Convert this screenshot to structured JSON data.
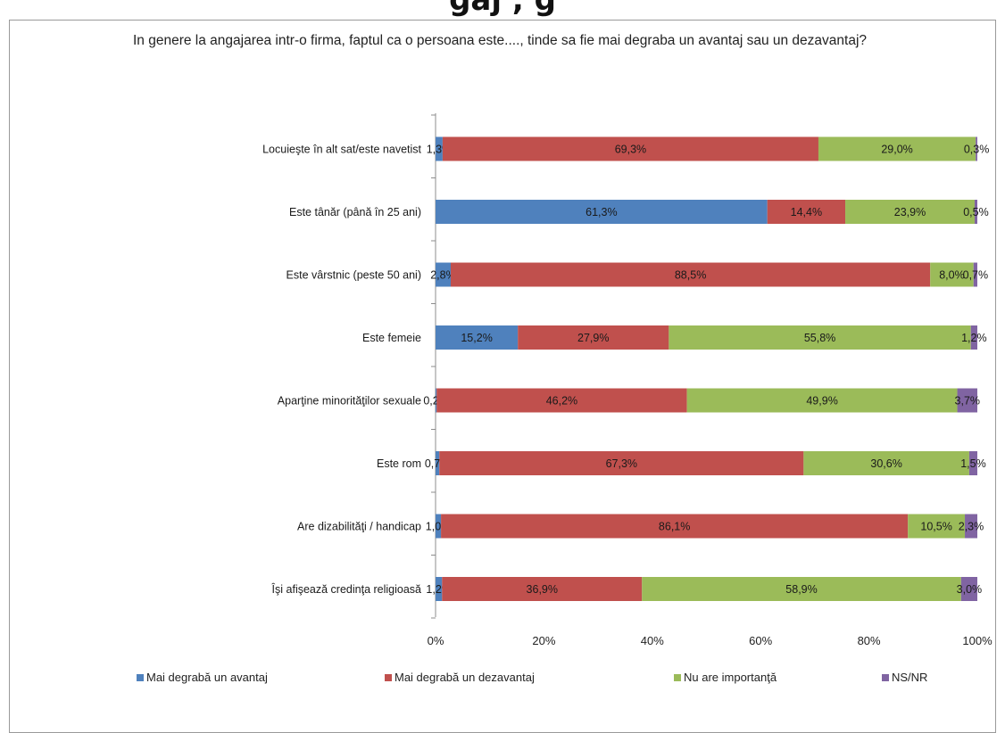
{
  "header_fragment": "gaj , g",
  "chart_data": {
    "type": "bar",
    "orientation": "horizontal",
    "stacked": "percent",
    "title": "In genere la angajarea intr-o firma, faptul ca o persoana este...., tinde sa fie mai degraba un avantaj sau un dezavantaj?",
    "categories": [
      "Locuieşte în alt sat/este navetist",
      "Este tânăr (până în 25 ani)",
      "Este vârstnic (peste 50 ani)",
      "Este femeie",
      "Aparţine minorităţilor sexuale",
      "Este rom",
      "Are dizabilităţi / handicap",
      "Îşi afişează credinţa religioasă"
    ],
    "series": [
      {
        "name": "Mai degrabă un avantaj",
        "color": "#4F81BD",
        "values": [
          1.3,
          61.3,
          2.8,
          15.2,
          0.2,
          0.7,
          1.0,
          1.2
        ],
        "labels": [
          "1,3%",
          "61,3%",
          "2,8%",
          "15,2%",
          "0,2%",
          "0,7%",
          "1,0%",
          "1,2%"
        ]
      },
      {
        "name": "Mai degrabă un dezavantaj",
        "color": "#C0504D",
        "values": [
          69.3,
          14.4,
          88.5,
          27.9,
          46.2,
          67.3,
          86.1,
          36.9
        ],
        "labels": [
          "69,3%",
          "14,4%",
          "88,5%",
          "27,9%",
          "46,2%",
          "67,3%",
          "86,1%",
          "36,9%"
        ]
      },
      {
        "name": "Nu are importanţă",
        "color": "#9BBB59",
        "values": [
          29.0,
          23.9,
          8.0,
          55.8,
          49.9,
          30.6,
          10.5,
          58.9
        ],
        "labels": [
          "29,0%",
          "23,9%",
          "8,0%",
          "55,8%",
          "49,9%",
          "30,6%",
          "10,5%",
          "58,9%"
        ]
      },
      {
        "name": "NS/NR",
        "color": "#8064A2",
        "values": [
          0.3,
          0.5,
          0.7,
          1.2,
          3.7,
          1.5,
          2.3,
          3.0
        ],
        "labels": [
          "0,3%",
          "0,5%",
          "0,7%",
          "1,2%",
          "3,7%",
          "1,5%",
          "2,3%",
          "3,0%"
        ]
      }
    ],
    "xlim": [
      0,
      100
    ],
    "xticks": [
      "0%",
      "20%",
      "40%",
      "60%",
      "80%",
      "100%"
    ],
    "grid": false,
    "legend_position": "bottom"
  }
}
